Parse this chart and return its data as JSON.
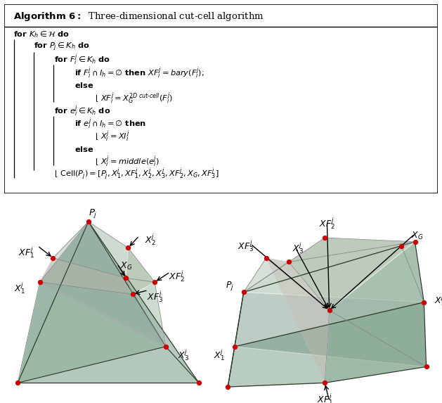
{
  "fig_width": 6.29,
  "fig_height": 5.73,
  "background_color": "#ffffff",
  "algo_box": {
    "title": "Algorithm 6: Three-dimensional cut-cell algorithm",
    "lines": [
      {
        "indent": 0,
        "text": "\\textbf{for} $K_h \\in \\mathcal{H}$ \\textbf{do}"
      },
      {
        "indent": 1,
        "text": "\\textbf{for} $P_j \\in K_h$ \\textbf{do}"
      },
      {
        "indent": 2,
        "text": "\\textbf{for} $F_i^j \\in K_h$ \\textbf{do}"
      },
      {
        "indent": 3,
        "text": "\\textbf{if} $F_i^j \\cap I_h = \\emptyset$ \\textbf{then} $XF_i^j = bary(F_i^j)$;"
      },
      {
        "indent": 3,
        "text": "\\textbf{else}"
      },
      {
        "indent": 4,
        "text": "$XF_i^j = X_G^{2D\\ cut-cell}(F_i^j)$"
      },
      {
        "indent": 2,
        "text": "\\textbf{for} $e_i^j \\in K_h$ \\textbf{do}"
      },
      {
        "indent": 3,
        "text": "\\textbf{if} $e_i^j \\cap I_h = \\emptyset$ \\textbf{then}"
      },
      {
        "indent": 4,
        "text": "$X_i^j = XI_i^j$"
      },
      {
        "indent": 3,
        "text": "\\textbf{else}"
      },
      {
        "indent": 4,
        "text": "$X_i^j = middle(e_i^j)$"
      },
      {
        "indent": 2,
        "text": "$\\text{Cell}(P_j) = [P_j, X_1^j, XF_1^j, X_2^j, X_3^j, XF_2^j, X_G, XF_3^j]$"
      }
    ]
  },
  "face_color": "#7a9e8e",
  "face_alpha": 0.55,
  "edge_color": "#ffffff",
  "edge_linewidth": 0.8,
  "dot_color": "#cc0000",
  "dot_size": 18,
  "arrow_color": "#000000",
  "label_fontsize": 9
}
